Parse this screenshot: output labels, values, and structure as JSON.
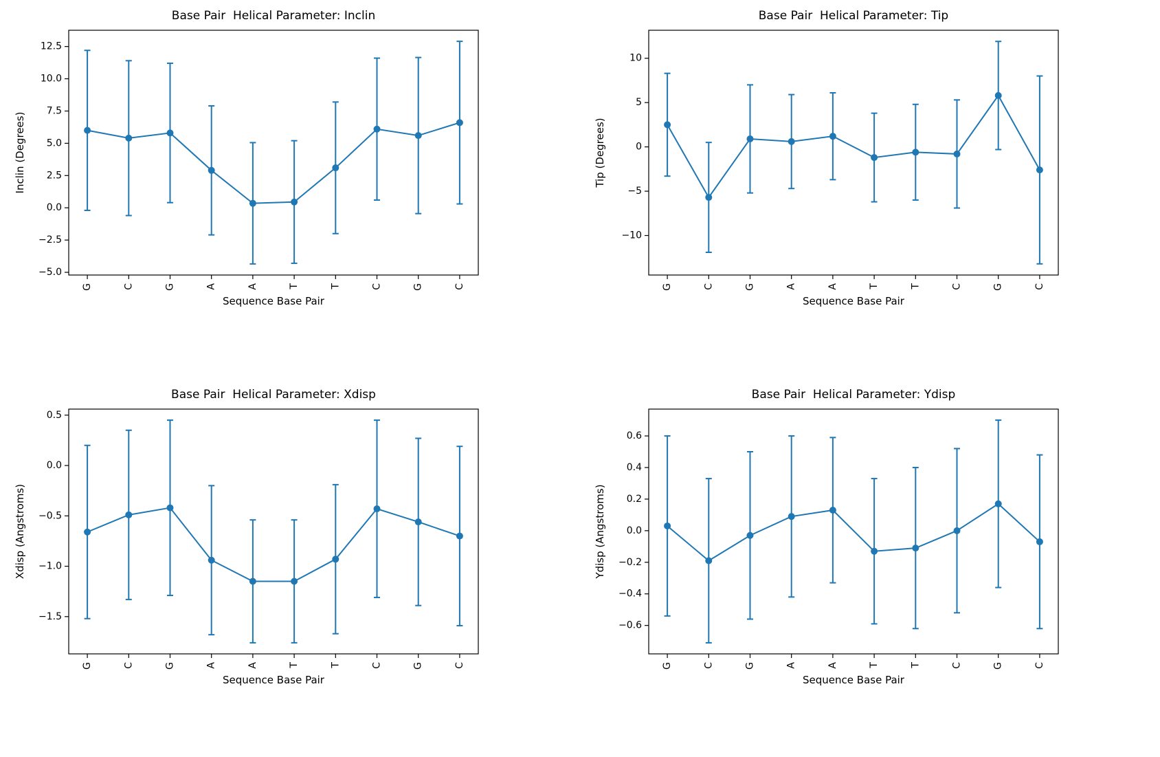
{
  "figure": {
    "background": "#ffffff",
    "accent_color": "#1f77b4"
  },
  "chart_data": [
    {
      "type": "line",
      "id": "inclin",
      "title": "Base Pair  Helical Parameter: Inclin",
      "xlabel": "Sequence Base Pair",
      "ylabel": "Inclin (Degrees)",
      "categories": [
        "G",
        "C",
        "G",
        "A",
        "A",
        "T",
        "T",
        "C",
        "G",
        "C"
      ],
      "values": [
        6.0,
        5.4,
        5.8,
        2.9,
        0.35,
        0.45,
        3.1,
        6.1,
        5.6,
        6.6
      ],
      "errors": [
        6.2,
        6.0,
        5.4,
        5.0,
        4.7,
        4.75,
        5.1,
        5.5,
        6.05,
        6.3
      ],
      "ylim": [
        -5.21,
        13.76
      ],
      "yticks": [
        -5.0,
        -2.5,
        0.0,
        2.5,
        5.0,
        7.5,
        10.0,
        12.5
      ],
      "ytick_labels": [
        "−5.0",
        "−2.5",
        "0.0",
        "2.5",
        "5.0",
        "7.5",
        "10.0",
        "12.5"
      ],
      "grid": false,
      "legend": null,
      "line_color": "#1f77b4"
    },
    {
      "type": "line",
      "id": "tip",
      "title": "Base Pair  Helical Parameter: Tip",
      "xlabel": "Sequence Base Pair",
      "ylabel": "Tip (Degrees)",
      "categories": [
        "G",
        "C",
        "G",
        "A",
        "A",
        "T",
        "T",
        "C",
        "G",
        "C"
      ],
      "values": [
        2.5,
        -5.7,
        0.9,
        0.6,
        1.2,
        -1.2,
        -0.6,
        -0.8,
        5.8,
        -2.6
      ],
      "errors": [
        5.8,
        6.2,
        6.1,
        5.3,
        4.9,
        5.0,
        5.4,
        6.1,
        6.1,
        10.6
      ],
      "ylim": [
        -14.46,
        13.16
      ],
      "yticks": [
        -10,
        -5,
        0,
        5,
        10
      ],
      "ytick_labels": [
        "−10",
        "−5",
        "0",
        "5",
        "10"
      ],
      "grid": false,
      "legend": null,
      "line_color": "#1f77b4"
    },
    {
      "type": "line",
      "id": "xdisp",
      "title": "Base Pair  Helical Parameter: Xdisp",
      "xlabel": "Sequence Base Pair",
      "ylabel": "Xdisp (Angstroms)",
      "categories": [
        "G",
        "C",
        "G",
        "A",
        "A",
        "T",
        "T",
        "C",
        "G",
        "C"
      ],
      "values": [
        -0.66,
        -0.49,
        -0.42,
        -0.94,
        -1.15,
        -1.15,
        -0.93,
        -0.43,
        -0.56,
        -0.7
      ],
      "errors": [
        0.86,
        0.84,
        0.87,
        0.74,
        0.61,
        0.61,
        0.74,
        0.88,
        0.83,
        0.89
      ],
      "ylim": [
        -1.87,
        0.56
      ],
      "yticks": [
        -1.5,
        -1.0,
        -0.5,
        0.0,
        0.5
      ],
      "ytick_labels": [
        "−1.5",
        "−1.0",
        "−0.5",
        "0.0",
        "0.5"
      ],
      "grid": false,
      "legend": null,
      "line_color": "#1f77b4"
    },
    {
      "type": "line",
      "id": "ydisp",
      "title": "Base Pair  Helical Parameter: Ydisp",
      "xlabel": "Sequence Base Pair",
      "ylabel": "Ydisp (Angstroms)",
      "categories": [
        "G",
        "C",
        "G",
        "A",
        "A",
        "T",
        "T",
        "C",
        "G",
        "C"
      ],
      "values": [
        0.03,
        -0.19,
        -0.03,
        0.09,
        0.13,
        -0.13,
        -0.11,
        0.0,
        0.17,
        -0.07
      ],
      "errors": [
        0.57,
        0.52,
        0.53,
        0.51,
        0.46,
        0.46,
        0.51,
        0.52,
        0.53,
        0.55
      ],
      "ylim": [
        -0.78,
        0.77
      ],
      "yticks": [
        -0.6,
        -0.4,
        -0.2,
        0.0,
        0.2,
        0.4,
        0.6
      ],
      "ytick_labels": [
        "−0.6",
        "−0.4",
        "−0.2",
        "0.0",
        "0.2",
        "0.4",
        "0.6"
      ],
      "grid": false,
      "legend": null,
      "line_color": "#1f77b4"
    }
  ]
}
